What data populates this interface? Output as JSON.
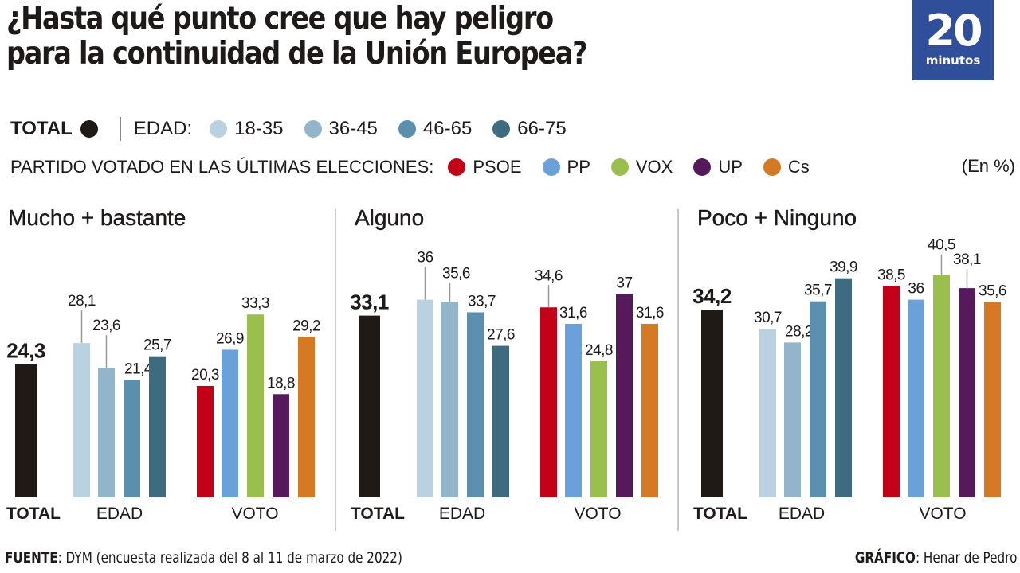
{
  "title_lines": [
    "¿Hasta qué punto cree que hay peligro",
    "para la continuidad de la Unión Europea?"
  ],
  "logo": {
    "number": "20",
    "word": "minutos"
  },
  "legend": {
    "total_label": "TOTAL",
    "edad_label": "EDAD:",
    "edad_items": [
      {
        "label": "18-35",
        "color": "#b9d1e0"
      },
      {
        "label": "36-45",
        "color": "#93b5cc"
      },
      {
        "label": "46-65",
        "color": "#5a8fae"
      },
      {
        "label": "66-75",
        "color": "#3f6b80"
      }
    ],
    "partido_label": "PARTIDO VOTADO EN LAS ÚLTIMAS ELECCIONES:",
    "partido_items": [
      {
        "label": "PSOE",
        "color": "#c40016"
      },
      {
        "label": "PP",
        "color": "#6aa1d8"
      },
      {
        "label": "VOX",
        "color": "#9bbf4d"
      },
      {
        "label": "UP",
        "color": "#561a5c"
      },
      {
        "label": "Cs",
        "color": "#d57a22"
      }
    ],
    "unit": "(En %)",
    "total_color": "#201a17"
  },
  "x_group_labels": {
    "total": "TOTAL",
    "edad": "EDAD",
    "voto": "VOTO"
  },
  "footer": {
    "source_label": "FUENTE",
    "source_text": ": DYM (encuesta realizada del 8 al 11 de marzo de 2022)",
    "credit_label": "GRÁFICO",
    "credit_text": ": Henar de Pedro"
  },
  "chart_data": {
    "type": "bar",
    "title": "¿Hasta qué punto cree que hay peligro para la continuidad de la Unión Europea?",
    "unit": "%",
    "categories": [
      "TOTAL",
      "18-35",
      "36-45",
      "46-65",
      "66-75",
      "PSOE",
      "PP",
      "VOX",
      "UP",
      "Cs"
    ],
    "panels": [
      {
        "name": "Mucho + bastante",
        "values": [
          24.3,
          28.1,
          23.6,
          21.4,
          25.7,
          20.3,
          26.9,
          33.3,
          18.8,
          29.2
        ],
        "labels": [
          "24,3",
          "28,1",
          "23,6",
          "21,4",
          "25,7",
          "20,3",
          "26,9",
          "33,3",
          "18,8",
          "29,2"
        ]
      },
      {
        "name": "Alguno",
        "values": [
          33.1,
          36,
          35.6,
          33.7,
          27.6,
          34.6,
          31.6,
          24.8,
          37,
          31.6
        ],
        "labels": [
          "33,1",
          "36",
          "35,6",
          "33,7",
          "27,6",
          "34,6",
          "31,6",
          "24,8",
          "37",
          "31,6"
        ]
      },
      {
        "name": "Poco + Ninguno",
        "values": [
          34.2,
          30.7,
          28.2,
          35.7,
          39.9,
          38.5,
          36,
          40.5,
          38.1,
          35.6
        ],
        "labels": [
          "34,2",
          "30,7",
          "28,2",
          "35,7",
          "39,9",
          "38,5",
          "36",
          "40,5",
          "38,1",
          "35,6"
        ]
      }
    ],
    "ylim": [
      0,
      45
    ],
    "grid": false
  }
}
